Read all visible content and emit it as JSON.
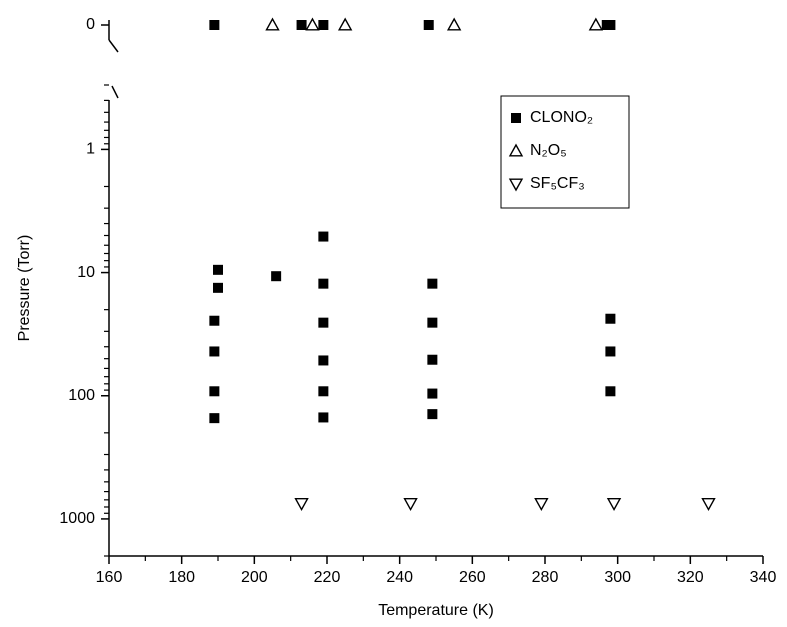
{
  "chart_data": {
    "type": "scatter",
    "x_label": "Temperature (K)",
    "y_label": "Pressure (Torr)",
    "xlim": [
      160,
      340
    ],
    "xticks": [
      160,
      180,
      200,
      220,
      240,
      260,
      280,
      300,
      320,
      340
    ],
    "ylim": [
      0.3,
      2000
    ],
    "yticks": [
      0,
      1,
      10,
      100,
      1000
    ],
    "y_log": true,
    "y_inverted": true,
    "y_axis_break": true,
    "legend": "upper right",
    "series": [
      {
        "name": "CLONO₂",
        "color": "#000000",
        "marker": "square",
        "x": [
          189,
          213,
          219,
          248,
          297,
          298,
          189,
          189,
          189,
          189,
          190,
          190,
          206,
          219,
          219,
          219,
          219,
          219,
          219,
          249,
          249,
          249,
          249,
          249,
          298,
          298,
          298
        ],
        "values": [
          0,
          0,
          0,
          0,
          0,
          0,
          24.6,
          43.7,
          92,
          152,
          9.5,
          13.3,
          10.7,
          5.1,
          12.3,
          25.5,
          51.7,
          92,
          150,
          12.3,
          25.5,
          51,
          96,
          141,
          23.7,
          43.7,
          92
        ]
      },
      {
        "name": "N₂O₅",
        "color": "#000000",
        "marker": "triangle-up",
        "x": [
          205,
          216,
          225,
          255,
          294
        ],
        "values": [
          0,
          0,
          0,
          0,
          0
        ]
      },
      {
        "name": "SF₅CF₃",
        "color": "#000000",
        "marker": "triangle-down",
        "x": [
          213,
          243,
          279,
          299,
          325
        ],
        "values": [
          750,
          750,
          750,
          750,
          750
        ]
      }
    ]
  }
}
